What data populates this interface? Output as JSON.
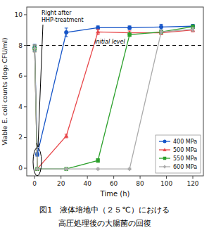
{
  "chart_data": {
    "type": "line",
    "xlabel": "Time (h)",
    "ylabel": "Viable E. coli counts (log₀ CFU/ml)",
    "caption": [
      "図1　液体培地中（２５℃）における",
      "高圧処理後の大腸菌の回復"
    ],
    "x": [
      0,
      2,
      24,
      48,
      72,
      96,
      120
    ],
    "xlim": [
      -6,
      128
    ],
    "ylim": [
      -0.5,
      10.5
    ],
    "xticks": [
      0,
      20,
      40,
      60,
      80,
      100,
      120
    ],
    "yticks": [
      0,
      2,
      4,
      6,
      8,
      10
    ],
    "grid": false,
    "legend": "lower right",
    "series": [
      {
        "name": "400 MPa",
        "color": "#1655c8",
        "marker": "circle",
        "values": [
          7.85,
          0.9,
          8.85,
          9.15,
          9.15,
          9.2,
          9.25
        ],
        "errors": [
          0.22,
          0.12,
          0.28,
          0.12,
          0.12,
          0.18,
          0.12
        ]
      },
      {
        "name": "500 MPa",
        "color": "#e8474a",
        "marker": "triangle",
        "values": [
          7.8,
          -0.05,
          2.1,
          8.88,
          8.82,
          8.82,
          9.0
        ],
        "errors": [
          0.22,
          0.05,
          0.12,
          0.18,
          0.12,
          0.12,
          0.12
        ]
      },
      {
        "name": "550 MPa",
        "color": "#2ca02c",
        "marker": "square",
        "values": [
          7.8,
          -0.05,
          -0.05,
          0.5,
          8.7,
          8.88,
          9.22
        ],
        "errors": [
          0.22,
          0.05,
          0.05,
          0.12,
          0.12,
          0.12,
          0.12
        ]
      },
      {
        "name": "600 MPa",
        "color": "#aaaaaa",
        "marker": "diamond",
        "values": [
          7.8,
          -0.05,
          -0.05,
          -0.05,
          -0.05,
          8.88,
          9.05
        ],
        "errors": [
          0.22,
          0.05,
          0.05,
          0.05,
          0.05,
          0.12,
          0.12
        ]
      }
    ],
    "reference_lines": [
      {
        "y": 8.0,
        "label": "initial level"
      }
    ],
    "annotations": [
      {
        "text": "Right after\nHHP-treatment",
        "x": 2.0,
        "y": 0.42
      }
    ]
  }
}
